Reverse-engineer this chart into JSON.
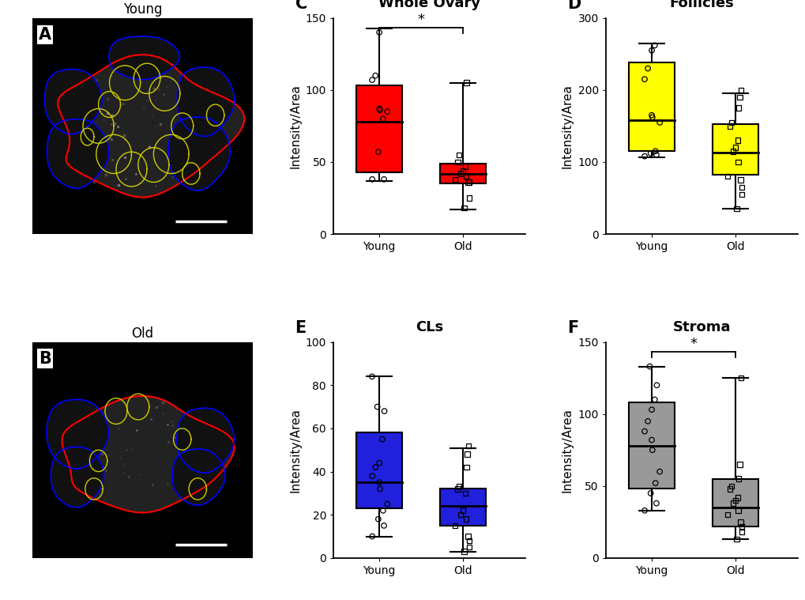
{
  "panel_C": {
    "title": "Whole Ovary",
    "label": "C",
    "ylabel": "Intensity/Area",
    "ylim": [
      0,
      150
    ],
    "yticks": [
      0,
      50,
      100,
      150
    ],
    "color": "#FF0000",
    "young": {
      "median": 78,
      "q1": 43,
      "q3": 103,
      "whislo": 37,
      "whishi": 143,
      "fliers_y": [
        38,
        38,
        57,
        80,
        85,
        86,
        87,
        107,
        110,
        140
      ]
    },
    "old": {
      "median": 42,
      "q1": 35,
      "q3": 49,
      "whislo": 17,
      "whishi": 105,
      "fliers_y": [
        18,
        25,
        36,
        36,
        38,
        40,
        42,
        44,
        47,
        50,
        55,
        105
      ]
    },
    "sig": true,
    "marker_young": "o",
    "marker_old": "s"
  },
  "panel_D": {
    "title": "Follicles",
    "label": "D",
    "ylabel": "Intensity/Area",
    "ylim": [
      0,
      300
    ],
    "yticks": [
      0,
      100,
      200,
      300
    ],
    "color": "#FFFF00",
    "young": {
      "median": 158,
      "q1": 115,
      "q3": 238,
      "whislo": 107,
      "whishi": 265,
      "fliers_y": [
        108,
        110,
        112,
        115,
        155,
        162,
        165,
        215,
        230,
        255,
        262
      ]
    },
    "old": {
      "median": 113,
      "q1": 82,
      "q3": 153,
      "whislo": 35,
      "whishi": 195,
      "fliers_y": [
        35,
        55,
        65,
        75,
        80,
        100,
        115,
        120,
        130,
        150,
        155,
        175,
        190,
        200
      ]
    },
    "sig": false,
    "marker_young": "o",
    "marker_old": "s"
  },
  "panel_E": {
    "title": "CLs",
    "label": "E",
    "ylabel": "Intensity/Area",
    "ylim": [
      0,
      100
    ],
    "yticks": [
      0,
      20,
      40,
      60,
      80,
      100
    ],
    "color": "#2020DD",
    "young": {
      "median": 35,
      "q1": 23,
      "q3": 58,
      "whislo": 10,
      "whishi": 84,
      "fliers_y": [
        10,
        15,
        18,
        22,
        25,
        32,
        35,
        38,
        42,
        44,
        55,
        68,
        70,
        84
      ]
    },
    "old": {
      "median": 24,
      "q1": 15,
      "q3": 32,
      "whislo": 3,
      "whishi": 51,
      "fliers_y": [
        3,
        5,
        8,
        10,
        15,
        18,
        20,
        22,
        30,
        32,
        33,
        42,
        48,
        52
      ]
    },
    "sig": false,
    "marker_young": "o",
    "marker_old": "s"
  },
  "panel_F": {
    "title": "Stroma",
    "label": "F",
    "ylabel": "Intensity/Area",
    "ylim": [
      0,
      150
    ],
    "yticks": [
      0,
      50,
      100,
      150
    ],
    "color": "#999999",
    "young": {
      "median": 78,
      "q1": 48,
      "q3": 108,
      "whislo": 33,
      "whishi": 133,
      "fliers_y": [
        33,
        38,
        45,
        52,
        60,
        75,
        82,
        88,
        95,
        103,
        110,
        120,
        133
      ]
    },
    "old": {
      "median": 35,
      "q1": 22,
      "q3": 55,
      "whislo": 13,
      "whishi": 125,
      "fliers_y": [
        13,
        18,
        22,
        25,
        30,
        33,
        38,
        40,
        42,
        48,
        50,
        55,
        65,
        125
      ]
    },
    "sig": true,
    "marker_young": "o",
    "marker_old": "s"
  },
  "background_color": "#FFFFFF",
  "title_fontsize": 13,
  "label_fontsize": 11,
  "tick_fontsize": 10,
  "panel_label_fontsize": 15
}
